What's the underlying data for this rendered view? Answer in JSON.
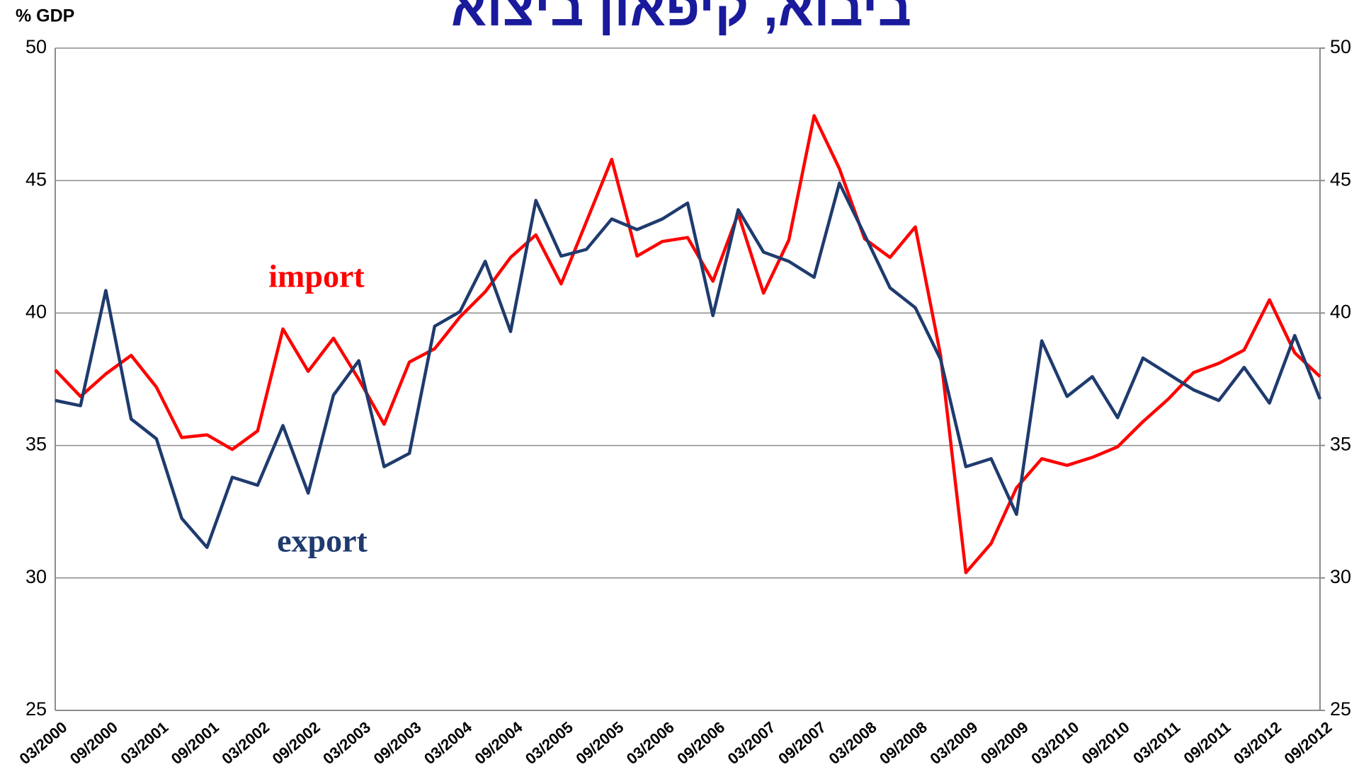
{
  "chart_data": {
    "type": "line",
    "title": "ביבוא, קיפאון ביצוא",
    "y_label": "% GDP",
    "categories": [
      "03/2000",
      null,
      "09/2000",
      null,
      "03/2001",
      null,
      "09/2001",
      null,
      "03/2002",
      null,
      "09/2002",
      null,
      "03/2003",
      null,
      "09/2003",
      null,
      "03/2004",
      null,
      "09/2004",
      null,
      "03/2005",
      null,
      "09/2005",
      null,
      "03/2006",
      null,
      "09/2006",
      null,
      "03/2007",
      null,
      "09/2007",
      null,
      "03/2008",
      null,
      "09/2008",
      null,
      "03/2009",
      null,
      "09/2009",
      null,
      "03/2010",
      null,
      "09/2010",
      null,
      "03/2011",
      null,
      "09/2011",
      null,
      "03/2012",
      null,
      "09/2012"
    ],
    "series": [
      {
        "name": "import",
        "color": "#ff0000",
        "values": [
          37.85,
          36.85,
          37.7,
          38.4,
          37.2,
          35.3,
          35.4,
          34.85,
          35.55,
          39.4,
          37.8,
          39.05,
          37.5,
          35.8,
          38.15,
          38.65,
          39.85,
          40.8,
          42.1,
          42.95,
          41.1,
          43.45,
          45.8,
          42.15,
          42.7,
          42.85,
          41.2,
          43.75,
          40.75,
          42.75,
          47.45,
          45.45,
          42.8,
          42.1,
          43.25,
          38.4,
          30.2,
          31.3,
          33.4,
          34.5,
          34.25,
          34.55,
          34.95,
          35.9,
          36.75,
          37.75,
          38.1,
          38.6,
          40.5,
          38.5,
          37.6
        ]
      },
      {
        "name": "export",
        "color": "#1f3b6e",
        "values": [
          36.7,
          36.5,
          40.85,
          36.0,
          35.25,
          32.25,
          31.15,
          33.8,
          33.5,
          35.75,
          33.2,
          36.9,
          38.2,
          34.2,
          34.7,
          39.5,
          40.05,
          41.95,
          39.3,
          44.25,
          42.15,
          42.4,
          43.55,
          43.15,
          43.55,
          44.15,
          39.9,
          43.9,
          42.3,
          41.95,
          41.35,
          44.9,
          42.95,
          40.95,
          40.2,
          38.25,
          34.2,
          34.5,
          32.4,
          38.95,
          36.85,
          37.6,
          36.05,
          38.3,
          37.7,
          37.1,
          36.7,
          37.95,
          36.6,
          39.15,
          36.75
        ]
      }
    ],
    "ylim": [
      25,
      50
    ],
    "yticks": [
      25,
      30,
      35,
      40,
      45,
      50
    ],
    "y2lim": [
      25,
      50
    ],
    "y2ticks": [
      25,
      30,
      35,
      40,
      45,
      50
    ],
    "grid": true
  }
}
